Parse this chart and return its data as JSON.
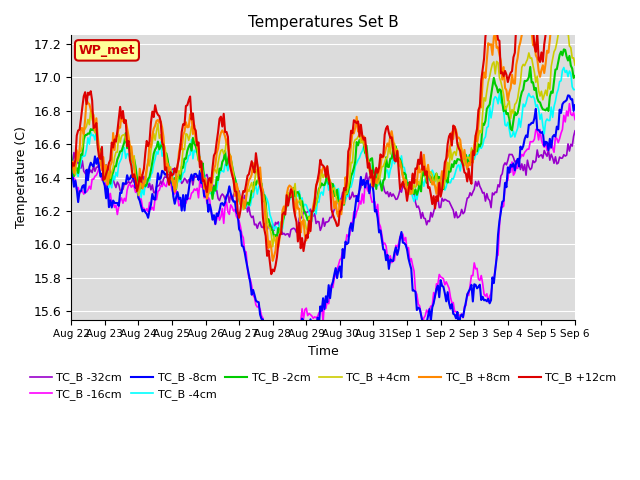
{
  "title": "Temperatures Set B",
  "ylabel": "Temperature (C)",
  "xlabel": "Time",
  "ylim": [
    15.55,
    17.25
  ],
  "yticks": [
    15.6,
    15.8,
    16.0,
    16.2,
    16.4,
    16.6,
    16.8,
    17.0,
    17.2
  ],
  "xtick_labels": [
    "Aug 22",
    "Aug 23",
    "Aug 24",
    "Aug 25",
    "Aug 26",
    "Aug 27",
    "Aug 28",
    "Aug 29",
    "Aug 30",
    "Aug 31",
    "Sep 1",
    "Sep 2",
    "Sep 3",
    "Sep 4",
    "Sep 5",
    "Sep 6"
  ],
  "xtick_positions": [
    0,
    24,
    48,
    72,
    96,
    120,
    144,
    168,
    192,
    216,
    240,
    264,
    288,
    312,
    336,
    360
  ],
  "series": [
    {
      "label": "TC_B -32cm",
      "color": "#9900cc",
      "lw": 1.2
    },
    {
      "label": "TC_B -16cm",
      "color": "#ff00ff",
      "lw": 1.2
    },
    {
      "label": "TC_B -8cm",
      "color": "#0000ff",
      "lw": 1.5
    },
    {
      "label": "TC_B -4cm",
      "color": "#00ffff",
      "lw": 1.2
    },
    {
      "label": "TC_B -2cm",
      "color": "#00cc00",
      "lw": 1.5
    },
    {
      "label": "TC_B +4cm",
      "color": "#cccc00",
      "lw": 1.2
    },
    {
      "label": "TC_B +8cm",
      "color": "#ff8800",
      "lw": 1.5
    },
    {
      "label": "TC_B +12cm",
      "color": "#dd0000",
      "lw": 1.5
    }
  ],
  "wp_met_box_color": "#ffff99",
  "wp_met_text_color": "#cc0000",
  "background_color": "#dcdcdc",
  "grid_color": "#ffffff"
}
